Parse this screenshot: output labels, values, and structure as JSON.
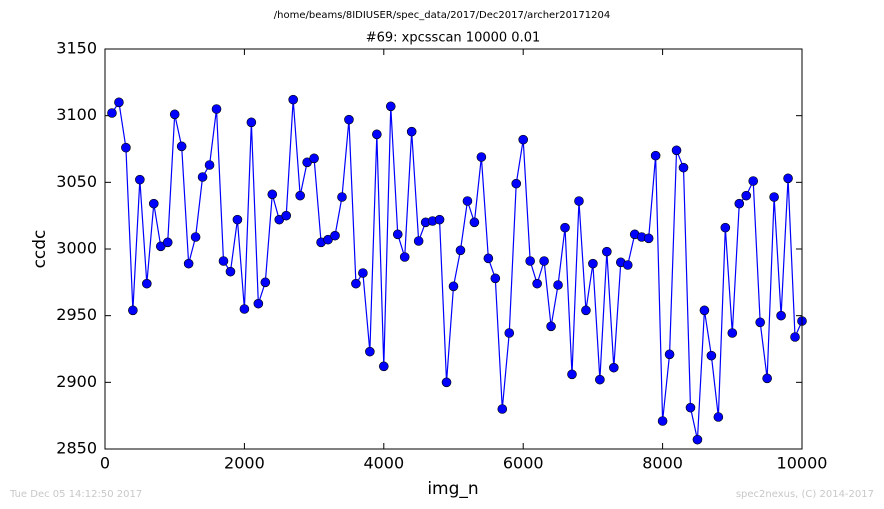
{
  "chart_data": {
    "type": "line",
    "suptitle": "/home/beams/8IDIUSER/spec_data/2017/Dec2017/archer20171204",
    "title": "#69: xpcsscan 10000 0.01",
    "x_label": "img_n",
    "y_label": "ccdc",
    "footer_left": "Tue Dec 05 14:12:50 2017",
    "footer_right": "spec2nexus, (C) 2014-2017",
    "x": [
      100,
      200,
      300,
      400,
      500,
      600,
      700,
      800,
      900,
      1000,
      1100,
      1200,
      1300,
      1400,
      1500,
      1600,
      1700,
      1800,
      1900,
      2000,
      2100,
      2200,
      2300,
      2400,
      2500,
      2600,
      2700,
      2800,
      2900,
      3000,
      3100,
      3200,
      3300,
      3400,
      3500,
      3600,
      3700,
      3800,
      3900,
      4000,
      4100,
      4200,
      4300,
      4400,
      4500,
      4600,
      4700,
      4800,
      4900,
      5000,
      5100,
      5200,
      5300,
      5400,
      5500,
      5600,
      5700,
      5800,
      5900,
      6000,
      6100,
      6200,
      6300,
      6400,
      6500,
      6600,
      6700,
      6800,
      6900,
      7000,
      7100,
      7200,
      7300,
      7400,
      7500,
      7600,
      7700,
      7800,
      7900,
      8000,
      8100,
      8200,
      8300,
      8400,
      8500,
      8600,
      8700,
      8800,
      8900,
      9000,
      9100,
      9200,
      9300,
      9400,
      9500,
      9600,
      9700,
      9800,
      9900,
      10000
    ],
    "series": [
      {
        "name": "ccdc",
        "color": "#0000ff",
        "values": [
          3102,
          3110,
          3076,
          2954,
          3052,
          2974,
          3034,
          3002,
          3005,
          3101,
          3077,
          2989,
          3009,
          3054,
          3063,
          3105,
          2991,
          2983,
          3022,
          2955,
          3095,
          2959,
          2975,
          3041,
          3022,
          3025,
          3112,
          3040,
          3065,
          3068,
          3005,
          3007,
          3010,
          3039,
          3097,
          2974,
          2982,
          2923,
          3086,
          2912,
          3107,
          3011,
          2994,
          3088,
          3006,
          3020,
          3021,
          3022,
          2900,
          2972,
          2999,
          3036,
          3020,
          3069,
          2993,
          2978,
          2880,
          2937,
          3049,
          3082,
          2991,
          2974,
          2991,
          2942,
          2973,
          3016,
          2906,
          3036,
          2954,
          2989,
          2902,
          2998,
          2911,
          2990,
          2988,
          3011,
          3009,
          3008,
          3070,
          2871,
          2921,
          3074,
          3061,
          2881,
          2857,
          2954,
          2920,
          2874,
          3016,
          2937,
          3034,
          3040,
          3051,
          2945,
          2903,
          3039,
          2950,
          3053,
          2934,
          2946
        ]
      }
    ],
    "xlim": [
      0,
      10000
    ],
    "xticks": [
      0,
      2000,
      4000,
      6000,
      8000,
      10000
    ],
    "ylim": [
      2850,
      3150
    ],
    "yticks": [
      2850,
      2900,
      2950,
      3000,
      3050,
      3100,
      3150
    ],
    "markers": true
  }
}
